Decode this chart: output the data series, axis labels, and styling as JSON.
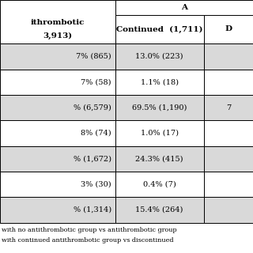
{
  "rows": [
    {
      "col1": "7% (865)",
      "col2": "13.0% (223)",
      "col3": "",
      "shaded": true
    },
    {
      "col1": "7% (58)",
      "col2": "1.1% (18)",
      "col3": "",
      "shaded": false
    },
    {
      "col1": "% (6,579)",
      "col2": "69.5% (1,190)",
      "col3": "7",
      "shaded": true
    },
    {
      "col1": "8% (74)",
      "col2": "1.0% (17)",
      "col3": "",
      "shaded": false
    },
    {
      "col1": "% (1,672)",
      "col2": "24.3% (415)",
      "col3": "",
      "shaded": true
    },
    {
      "col1": "3% (30)",
      "col2": "0.4% (7)",
      "col3": "",
      "shaded": false
    },
    {
      "col1": "% (1,314)",
      "col2": "15.4% (264)",
      "col3": "",
      "shaded": true
    }
  ],
  "col1_line1": "ithrombotic",
  "col1_line2": "3,913)",
  "col2_header": "Continued  (1,711)",
  "col3_header": "D",
  "group_header": "A",
  "footnote1": "with no antithrombotic group vs antithrombotic group",
  "footnote2": "with continued antithrombotic group vs discontinued",
  "bg_color": "#ffffff",
  "shade_color": "#d9d9d9",
  "lw": 0.7,
  "font_size": 7.0,
  "header_font_size": 7.5,
  "footnote_font_size": 5.8
}
